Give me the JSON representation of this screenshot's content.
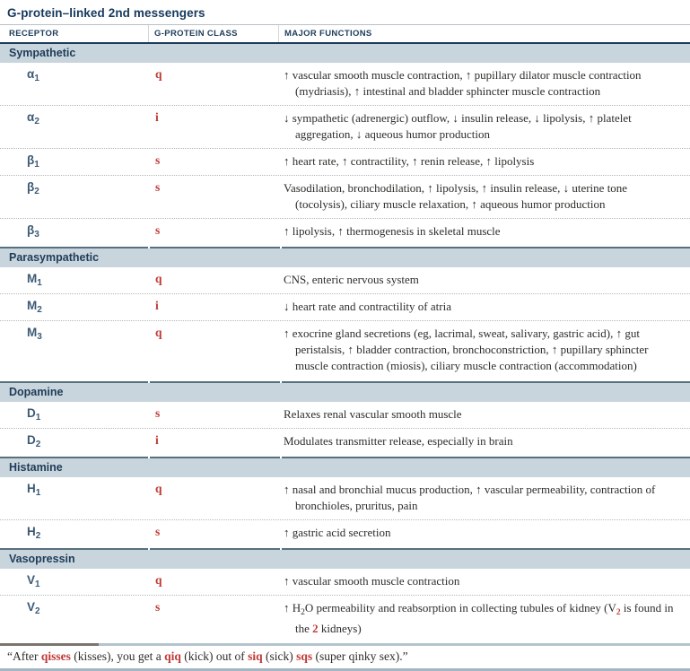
{
  "title": "G-protein–linked 2nd messengers",
  "columns": [
    {
      "label": "RECEPTOR"
    },
    {
      "label": "G-PROTEIN CLASS"
    },
    {
      "label": "MAJOR FUNCTIONS"
    }
  ],
  "colors": {
    "navy": "#1d3c5a",
    "section_band_bg": "#c9d5dc",
    "receptor_blue": "#3c5a75",
    "accent_red": "#bf3a36",
    "body_text": "#2e2d2b"
  },
  "sections": [
    {
      "name": "Sympathetic",
      "rows": [
        {
          "receptor": {
            "base": "α",
            "sub": "1"
          },
          "g_class": "q",
          "functions": [
            {
              "t": "↑ vascular smooth muscle contraction, ↑ pupillary dilator muscle contraction (mydriasis), ↑ intestinal and bladder sphincter muscle contraction"
            }
          ]
        },
        {
          "receptor": {
            "base": "α",
            "sub": "2"
          },
          "g_class": "i",
          "functions": [
            {
              "t": "↓ sympathetic (adrenergic) outflow, ↓ insulin release, ↓ lipolysis, ↑ platelet aggregation, ↓ aqueous humor production"
            }
          ]
        },
        {
          "receptor": {
            "base": "β",
            "sub": "1"
          },
          "g_class": "s",
          "functions": [
            {
              "t": "↑ heart rate, ↑ contractility, ↑ renin release, ↑ lipolysis"
            }
          ]
        },
        {
          "receptor": {
            "base": "β",
            "sub": "2"
          },
          "g_class": "s",
          "functions": [
            {
              "t": "Vasodilation, bronchodilation, ↑ lipolysis, ↑ insulin release, ↓ uterine tone (tocolysis), ciliary muscle relaxation, ↑ aqueous humor production"
            }
          ]
        },
        {
          "receptor": {
            "base": "β",
            "sub": "3"
          },
          "g_class": "s",
          "functions": [
            {
              "t": "↑ lipolysis, ↑ thermogenesis in skeletal muscle"
            }
          ]
        }
      ]
    },
    {
      "name": "Parasympathetic",
      "rows": [
        {
          "receptor": {
            "base": "M",
            "sub": "1"
          },
          "g_class": "q",
          "functions": [
            {
              "t": "CNS, enteric nervous system"
            }
          ]
        },
        {
          "receptor": {
            "base": "M",
            "sub": "2"
          },
          "g_class": "i",
          "functions": [
            {
              "t": "↓ heart rate and contractility of atria"
            }
          ]
        },
        {
          "receptor": {
            "base": "M",
            "sub": "3"
          },
          "g_class": "q",
          "functions": [
            {
              "t": "↑ exocrine gland secretions (eg, lacrimal, sweat, salivary, gastric acid), ↑ gut peristalsis, ↑ bladder contraction, bronchoconstriction, ↑ pupillary sphincter muscle contraction (miosis), ciliary muscle contraction (accommodation)"
            }
          ]
        }
      ]
    },
    {
      "name": "Dopamine",
      "rows": [
        {
          "receptor": {
            "base": "D",
            "sub": "1"
          },
          "g_class": "s",
          "functions": [
            {
              "t": "Relaxes renal vascular smooth muscle"
            }
          ]
        },
        {
          "receptor": {
            "base": "D",
            "sub": "2"
          },
          "g_class": "i",
          "functions": [
            {
              "t": "Modulates transmitter release, especially in brain"
            }
          ]
        }
      ]
    },
    {
      "name": "Histamine",
      "rows": [
        {
          "receptor": {
            "base": "H",
            "sub": "1"
          },
          "g_class": "q",
          "functions": [
            {
              "t": "↑ nasal and bronchial mucus production, ↑ vascular permeability, contraction of bronchioles, pruritus, pain"
            }
          ]
        },
        {
          "receptor": {
            "base": "H",
            "sub": "2"
          },
          "g_class": "s",
          "functions": [
            {
              "t": "↑ gastric acid secretion"
            }
          ]
        }
      ]
    },
    {
      "name": "Vasopressin",
      "rows": [
        {
          "receptor": {
            "base": "V",
            "sub": "1"
          },
          "g_class": "q",
          "functions": [
            {
              "t": "↑ vascular smooth muscle contraction"
            }
          ]
        },
        {
          "receptor": {
            "base": "V",
            "sub": "2"
          },
          "g_class": "s",
          "functions": [
            {
              "t": "↑ H"
            },
            {
              "t": "2",
              "s": "sub"
            },
            {
              "t": "O permeability and reabsorption in collecting tubules of kidney (V"
            },
            {
              "t": "2",
              "s": "sub-red"
            },
            {
              "t": " is found in the "
            },
            {
              "t": "2",
              "s": "b-red"
            },
            {
              "t": " kidneys)"
            }
          ]
        }
      ]
    }
  ],
  "footer": {
    "segments": [
      {
        "t": "“After "
      },
      {
        "t": "qisses",
        "s": "b-red"
      },
      {
        "t": " (kisses), you get a "
      },
      {
        "t": "qiq",
        "s": "b-red"
      },
      {
        "t": " (kick) out of "
      },
      {
        "t": "siq",
        "s": "b-red"
      },
      {
        "t": " (sick) "
      },
      {
        "t": "sqs",
        "s": "b-red"
      },
      {
        "t": " (super qinky sex).”"
      }
    ]
  }
}
